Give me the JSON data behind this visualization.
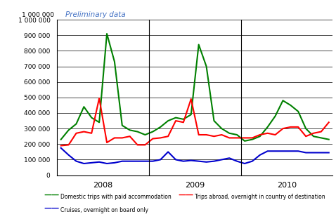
{
  "title": "Preliminary data",
  "ylim": [
    0,
    1000000
  ],
  "yticks": [
    0,
    100000,
    200000,
    300000,
    400000,
    500000,
    600000,
    700000,
    800000,
    900000,
    1000000
  ],
  "ytick_labels": [
    "0",
    "100 000",
    "200 000",
    "300 000",
    "400 000",
    "500 000",
    "600 000",
    "700 000",
    "800 000",
    "900 000",
    "1 000 000"
  ],
  "ylabel_top": "1 000 000",
  "green_label": "Domestic trips with paid accommodation",
  "red_label": "Trips abroad, overnight in country of destination",
  "blue_label": "Cruises, overnight on board only",
  "green_color": "#008000",
  "red_color": "#FF0000",
  "blue_color": "#0000CD",
  "title_color": "#4472C4",
  "green": [
    230000,
    290000,
    330000,
    440000,
    370000,
    340000,
    910000,
    730000,
    320000,
    290000,
    280000,
    260000,
    280000,
    310000,
    350000,
    370000,
    360000,
    390000,
    840000,
    700000,
    350000,
    300000,
    270000,
    260000,
    220000,
    230000,
    250000,
    310000,
    380000,
    480000,
    450000,
    410000,
    300000,
    250000,
    240000,
    230000
  ],
  "red": [
    190000,
    195000,
    270000,
    280000,
    270000,
    495000,
    210000,
    240000,
    240000,
    250000,
    195000,
    195000,
    235000,
    240000,
    250000,
    350000,
    340000,
    490000,
    260000,
    260000,
    250000,
    260000,
    240000,
    240000,
    240000,
    240000,
    260000,
    270000,
    260000,
    300000,
    310000,
    310000,
    250000,
    270000,
    280000,
    340000
  ],
  "blue": [
    175000,
    130000,
    90000,
    75000,
    80000,
    85000,
    75000,
    80000,
    90000,
    90000,
    90000,
    90000,
    90000,
    100000,
    150000,
    100000,
    90000,
    95000,
    90000,
    85000,
    90000,
    100000,
    110000,
    90000,
    75000,
    90000,
    130000,
    155000,
    155000,
    155000,
    155000,
    155000,
    145000,
    145000,
    145000,
    145000
  ],
  "vlines": [
    11.5,
    23.5
  ],
  "background_color": "#ffffff",
  "linewidth": 1.5
}
